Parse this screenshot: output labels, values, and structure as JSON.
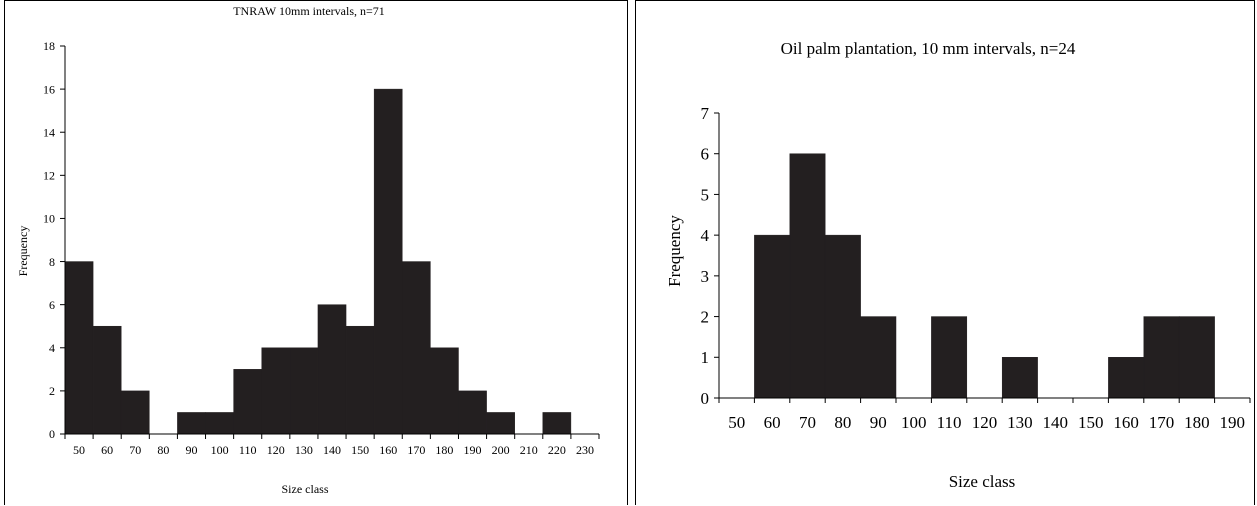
{
  "chart_data": [
    {
      "type": "bar",
      "title": "TNRAW 10mm intervals, n=71",
      "xlabel": "Size class",
      "ylabel": "Frequency",
      "ylim": [
        0,
        18
      ],
      "yticks": [
        "0",
        "2",
        "4",
        "6",
        "8",
        "10",
        "12",
        "14",
        "16",
        "18"
      ],
      "categories": [
        "50",
        "60",
        "70",
        "80",
        "90",
        "100",
        "110",
        "120",
        "130",
        "140",
        "150",
        "160",
        "170",
        "180",
        "190",
        "200",
        "210",
        "220",
        "230"
      ],
      "values": [
        8,
        5,
        2,
        0,
        1,
        1,
        3,
        4,
        4,
        6,
        5,
        16,
        8,
        4,
        2,
        1,
        0,
        1,
        0
      ],
      "grid": false,
      "legend": "none",
      "bar_color": "#231f20"
    },
    {
      "type": "bar",
      "title": "Oil palm plantation, 10 mm intervals, n=24",
      "xlabel": "Size class",
      "ylabel": "Frequency",
      "ylim": [
        0,
        7
      ],
      "yticks": [
        "0",
        "1",
        "2",
        "3",
        "4",
        "5",
        "6",
        "7"
      ],
      "categories": [
        "50",
        "60",
        "70",
        "80",
        "90",
        "100",
        "110",
        "120",
        "130",
        "140",
        "150",
        "160",
        "170",
        "180",
        "190"
      ],
      "values": [
        0,
        4,
        6,
        4,
        2,
        0,
        2,
        0,
        1,
        0,
        0,
        1,
        2,
        2,
        0
      ],
      "grid": false,
      "legend": "none",
      "bar_color": "#231f20"
    }
  ]
}
